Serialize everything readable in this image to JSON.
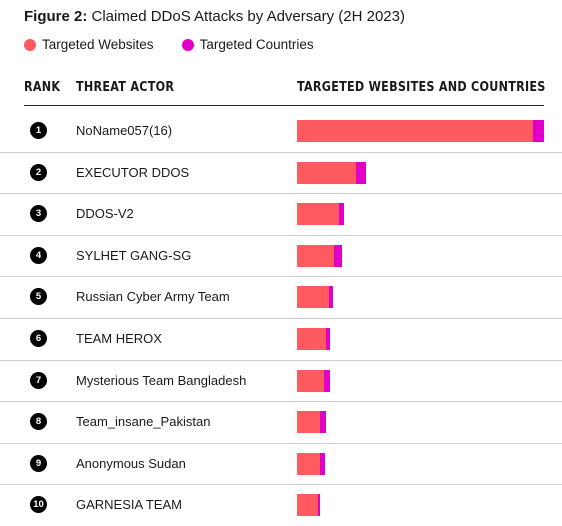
{
  "title": {
    "prefix": "Figure 2:",
    "text": " Claimed DDoS Attacks by Adversary (2H 2023)"
  },
  "legend": [
    {
      "label": "Targeted Websites",
      "color": "#ff5a5f"
    },
    {
      "label": "Targeted Countries",
      "color": "#e100c8"
    }
  ],
  "headers": {
    "rank": "RANK",
    "actor": "THREAT ACTOR",
    "bars": "TARGETED WEBSITES AND COUNTRIES"
  },
  "chart_data": {
    "type": "bar",
    "orientation": "horizontal",
    "stacked": true,
    "categories": [
      "NoName057(16)",
      "EXECUTOR DDOS",
      "DDOS-V2",
      "SYLHET GANG-SG",
      "Russian Cyber Army Team",
      "TEAM HEROX",
      "Mysterious Team Bangladesh",
      "Team_insane_Pakistan",
      "Anonymous Sudan",
      "GARNESIA TEAM"
    ],
    "ranks": [
      "1",
      "2",
      "3",
      "4",
      "5",
      "6",
      "7",
      "8",
      "9",
      "10"
    ],
    "series": [
      {
        "name": "Targeted Websites",
        "color": "#ff5a5f",
        "values": [
          234,
          59,
          42,
          37,
          32,
          29,
          27,
          23,
          23,
          21
        ]
      },
      {
        "name": "Targeted Countries",
        "color": "#e100c8",
        "values": [
          11,
          9,
          5,
          8,
          4,
          4,
          6,
          6,
          5,
          2
        ]
      }
    ],
    "xlim": [
      0,
      245
    ],
    "grid": false,
    "legend_position": "top-left"
  }
}
